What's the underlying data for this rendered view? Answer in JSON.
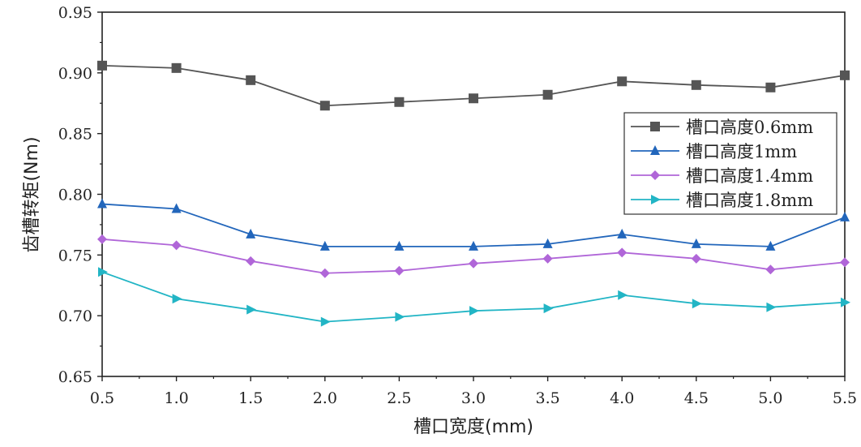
{
  "chart_data": {
    "type": "line",
    "title": "",
    "xlabel": "槽口宽度(mm)",
    "ylabel": "齿槽转矩(Nm)",
    "xlim": [
      0.5,
      5.5
    ],
    "ylim": [
      0.65,
      0.95
    ],
    "x": [
      0.5,
      1.0,
      1.5,
      2.0,
      2.5,
      3.0,
      3.5,
      4.0,
      4.5,
      5.0,
      5.5
    ],
    "xticks": [
      "0.5",
      "1.0",
      "1.5",
      "2.0",
      "2.5",
      "3.0",
      "3.5",
      "4.0",
      "4.5",
      "5.0",
      "5.5"
    ],
    "yticks": [
      "0.65",
      "0.70",
      "0.75",
      "0.80",
      "0.85",
      "0.90",
      "0.95"
    ],
    "legend_position": "right",
    "grid": false,
    "series": [
      {
        "name": "槽口高度0.6mm",
        "marker": "square",
        "color": "#555555",
        "values": [
          0.906,
          0.904,
          0.894,
          0.873,
          0.876,
          0.879,
          0.882,
          0.893,
          0.89,
          0.888,
          0.898
        ]
      },
      {
        "name": "槽口高度1mm",
        "marker": "triangle-up",
        "color": "#2266bb",
        "values": [
          0.792,
          0.788,
          0.767,
          0.757,
          0.757,
          0.757,
          0.759,
          0.767,
          0.759,
          0.757,
          0.781
        ]
      },
      {
        "name": "槽口高度1.4mm",
        "marker": "diamond",
        "color": "#b066d8",
        "values": [
          0.763,
          0.758,
          0.745,
          0.735,
          0.737,
          0.743,
          0.747,
          0.752,
          0.747,
          0.738,
          0.744
        ]
      },
      {
        "name": "槽口高度1.8mm",
        "marker": "triangle-right",
        "color": "#22b5c5",
        "values": [
          0.736,
          0.714,
          0.705,
          0.695,
          0.699,
          0.704,
          0.706,
          0.717,
          0.71,
          0.707,
          0.711
        ]
      }
    ]
  }
}
